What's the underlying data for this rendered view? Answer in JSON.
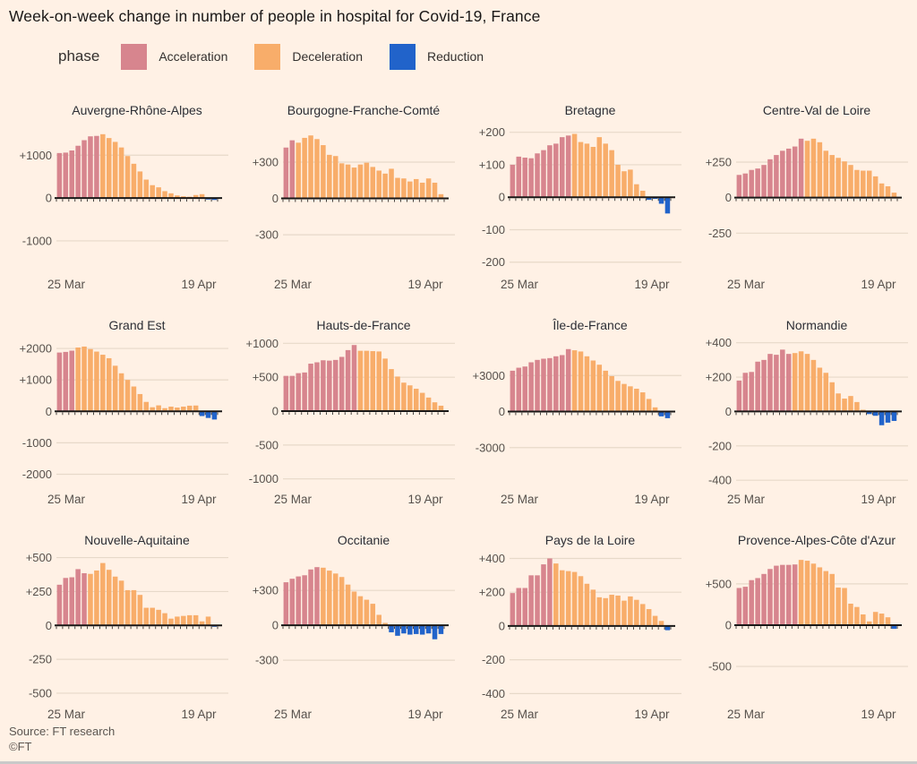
{
  "title": "Week-on-week change in number of people in hospital for Covid-19, France",
  "legend": {
    "label": "phase",
    "items": [
      {
        "label": "Acceleration",
        "color": "#d7858e"
      },
      {
        "label": "Deceleration",
        "color": "#f8ad6a"
      },
      {
        "label": "Reduction",
        "color": "#2163ca"
      }
    ]
  },
  "source": "Source: FT research",
  "copyright": "©FT",
  "colors": {
    "background": "#fff1e5",
    "acceleration": "#d7858e",
    "deceleration": "#f8ad6a",
    "reduction": "#2163ca",
    "gridline": "#e7d9c9",
    "axis": "#1a1817",
    "tick_text": "#56514c"
  },
  "x_axis": {
    "start_label": "25 Mar",
    "end_label": "19 Apr"
  },
  "chart_data": [
    {
      "type": "bar",
      "title": "Auvergne-Rhône-Alpes",
      "ticks": [
        {
          "v": 1000,
          "label": "+1000"
        },
        {
          "v": 0,
          "label": "0"
        },
        {
          "v": -1000,
          "label": "-1000"
        }
      ],
      "ylim": [
        -1650,
        1800
      ],
      "phases": {
        "acceleration": 7,
        "deceleration": 17,
        "reduction": 2
      },
      "values": [
        1050,
        1060,
        1110,
        1220,
        1350,
        1440,
        1450,
        1490,
        1400,
        1310,
        1180,
        980,
        800,
        620,
        430,
        300,
        250,
        160,
        110,
        60,
        40,
        30,
        70,
        90,
        -35,
        -45
      ]
    },
    {
      "type": "bar",
      "title": "Bourgogne-Franche-Comté",
      "ticks": [
        {
          "v": 300,
          "label": "+300"
        },
        {
          "v": 0,
          "label": "0"
        },
        {
          "v": -300,
          "label": "-300"
        }
      ],
      "ylim": [
        -580,
        640
      ],
      "phases": {
        "acceleration": 2,
        "deceleration": 24,
        "reduction": 0
      },
      "values": [
        420,
        480,
        460,
        500,
        520,
        490,
        440,
        360,
        350,
        290,
        280,
        255,
        280,
        295,
        260,
        230,
        205,
        245,
        170,
        165,
        140,
        160,
        130,
        165,
        130,
        35
      ]
    },
    {
      "type": "bar",
      "title": "Bretagne",
      "ticks": [
        {
          "v": 200,
          "label": "+200"
        },
        {
          "v": 100,
          "label": "+100"
        },
        {
          "v": 0,
          "label": "0"
        },
        {
          "v": -100,
          "label": "-100"
        },
        {
          "v": -200,
          "label": "-200"
        }
      ],
      "ylim": [
        -220,
        235
      ],
      "phases": {
        "acceleration": 10,
        "deceleration": 12,
        "reduction": 4
      },
      "values": [
        100,
        125,
        122,
        120,
        135,
        145,
        160,
        165,
        185,
        190,
        195,
        170,
        165,
        155,
        185,
        165,
        145,
        100,
        80,
        85,
        40,
        20,
        -8,
        -5,
        -20,
        -50
      ]
    },
    {
      "type": "bar",
      "title": "Centre-Val de Loire",
      "ticks": [
        {
          "v": 250,
          "label": "+250"
        },
        {
          "v": 0,
          "label": "0"
        },
        {
          "v": -250,
          "label": "-250"
        }
      ],
      "ylim": [
        -500,
        540
      ],
      "phases": {
        "acceleration": 11,
        "deceleration": 15,
        "reduction": 0
      },
      "values": [
        160,
        170,
        195,
        205,
        230,
        270,
        300,
        330,
        345,
        360,
        415,
        400,
        415,
        390,
        330,
        300,
        280,
        255,
        230,
        195,
        190,
        190,
        150,
        100,
        80,
        35
      ]
    },
    {
      "type": "bar",
      "title": "Grand Est",
      "ticks": [
        {
          "v": 2000,
          "label": "+2000"
        },
        {
          "v": 1000,
          "label": "+1000"
        },
        {
          "v": 0,
          "label": "0"
        },
        {
          "v": -1000,
          "label": "-1000"
        },
        {
          "v": -2000,
          "label": "-2000"
        }
      ],
      "ylim": [
        -2300,
        2400
      ],
      "phases": {
        "acceleration": 3,
        "deceleration": 20,
        "reduction": 3
      },
      "values": [
        1870,
        1890,
        1930,
        2030,
        2060,
        1980,
        1900,
        1800,
        1690,
        1450,
        1210,
        1000,
        790,
        550,
        300,
        130,
        190,
        100,
        150,
        120,
        150,
        180,
        185,
        -150,
        -210,
        -260
      ]
    },
    {
      "type": "bar",
      "title": "Hauts-de-France",
      "ticks": [
        {
          "v": 1000,
          "label": "+1000"
        },
        {
          "v": 500,
          "label": "+500"
        },
        {
          "v": 0,
          "label": "0"
        },
        {
          "v": -500,
          "label": "-500"
        },
        {
          "v": -1000,
          "label": "-1000"
        }
      ],
      "ylim": [
        -1070,
        1110
      ],
      "phases": {
        "acceleration": 12,
        "deceleration": 14,
        "reduction": 0
      },
      "values": [
        520,
        520,
        560,
        570,
        700,
        720,
        750,
        745,
        755,
        800,
        900,
        975,
        890,
        890,
        885,
        880,
        775,
        620,
        510,
        420,
        380,
        330,
        270,
        200,
        130,
        80
      ]
    },
    {
      "type": "bar",
      "title": "Île-de-France",
      "ticks": [
        {
          "v": 3000,
          "label": "+3000"
        },
        {
          "v": 0,
          "label": "0"
        },
        {
          "v": -3000,
          "label": "-3000"
        }
      ],
      "ylim": [
        -6000,
        6300
      ],
      "phases": {
        "acceleration": 10,
        "deceleration": 14,
        "reduction": 2
      },
      "values": [
        3400,
        3650,
        3750,
        4100,
        4300,
        4400,
        4450,
        4600,
        4700,
        5200,
        5100,
        5000,
        4600,
        4250,
        3900,
        3400,
        2950,
        2550,
        2300,
        2100,
        1900,
        1600,
        1050,
        350,
        -400,
        -550
      ]
    },
    {
      "type": "bar",
      "title": "Normandie",
      "ticks": [
        {
          "v": 400,
          "label": "+400"
        },
        {
          "v": 200,
          "label": "+200"
        },
        {
          "v": 0,
          "label": "0"
        },
        {
          "v": -200,
          "label": "-200"
        },
        {
          "v": -400,
          "label": "-400"
        }
      ],
      "ylim": [
        -420,
        440
      ],
      "phases": {
        "acceleration": 9,
        "deceleration": 12,
        "reduction": 5
      },
      "values": [
        180,
        225,
        230,
        290,
        300,
        335,
        330,
        360,
        335,
        340,
        350,
        335,
        300,
        255,
        225,
        170,
        105,
        75,
        90,
        55,
        10,
        -15,
        -25,
        -80,
        -65,
        -55
      ]
    },
    {
      "type": "bar",
      "title": "Nouvelle-Aquitaine",
      "ticks": [
        {
          "v": 500,
          "label": "+500"
        },
        {
          "v": 250,
          "label": "+250"
        },
        {
          "v": 0,
          "label": "0"
        },
        {
          "v": -250,
          "label": "-250"
        },
        {
          "v": -500,
          "label": "-500"
        }
      ],
      "ylim": [
        -540,
        550
      ],
      "phases": {
        "acceleration": 5,
        "deceleration": 20,
        "reduction": 1
      },
      "values": [
        300,
        350,
        355,
        415,
        385,
        380,
        405,
        460,
        410,
        360,
        330,
        260,
        260,
        225,
        130,
        130,
        115,
        90,
        50,
        65,
        70,
        75,
        75,
        30,
        65,
        -10
      ]
    },
    {
      "type": "bar",
      "title": "Occitanie",
      "ticks": [
        {
          "v": 300,
          "label": "+300"
        },
        {
          "v": 0,
          "label": "0"
        },
        {
          "v": -300,
          "label": "-300"
        }
      ],
      "ylim": [
        -630,
        640
      ],
      "phases": {
        "acceleration": 6,
        "deceleration": 11,
        "reduction": 9
      },
      "values": [
        370,
        400,
        420,
        430,
        480,
        500,
        495,
        470,
        445,
        415,
        350,
        290,
        250,
        220,
        185,
        90,
        20,
        -60,
        -90,
        -70,
        -80,
        -75,
        -80,
        -70,
        -120,
        -75
      ]
    },
    {
      "type": "bar",
      "title": "Pays de la Loire",
      "ticks": [
        {
          "v": 400,
          "label": "+400"
        },
        {
          "v": 200,
          "label": "+200"
        },
        {
          "v": 0,
          "label": "0"
        },
        {
          "v": -200,
          "label": "-200"
        },
        {
          "v": -400,
          "label": "-400"
        }
      ],
      "ylim": [
        -430,
        445
      ],
      "phases": {
        "acceleration": 7,
        "deceleration": 18,
        "reduction": 1
      },
      "values": [
        195,
        225,
        225,
        300,
        300,
        365,
        400,
        370,
        330,
        325,
        320,
        295,
        250,
        215,
        170,
        165,
        185,
        180,
        150,
        175,
        155,
        130,
        100,
        60,
        30,
        -25
      ]
    },
    {
      "type": "bar",
      "title": "Provence-Alpes-Côte d'Azur",
      "ticks": [
        {
          "v": 500,
          "label": "+500"
        },
        {
          "v": 0,
          "label": "0"
        },
        {
          "v": -500,
          "label": "-500"
        }
      ],
      "ylim": [
        -890,
        900
      ],
      "phases": {
        "acceleration": 10,
        "deceleration": 15,
        "reduction": 1
      },
      "values": [
        450,
        465,
        545,
        570,
        620,
        680,
        720,
        730,
        730,
        735,
        790,
        780,
        745,
        700,
        655,
        620,
        455,
        450,
        260,
        220,
        130,
        45,
        160,
        140,
        95,
        -45
      ]
    }
  ]
}
